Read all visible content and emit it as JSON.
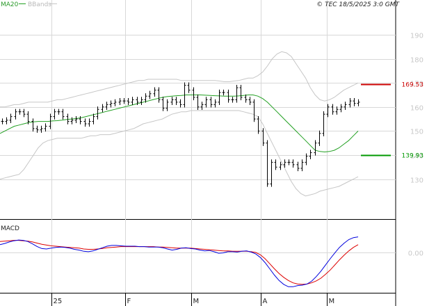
{
  "legend": {
    "ma_label": "MA20",
    "bands_label": "BBands"
  },
  "copyright": "© TEC 18/5/2025 3:0 GMT",
  "colors": {
    "ma": "#22a022",
    "bands": "#c6c6c6",
    "price": "#000000",
    "macd": "#0000dd",
    "signal": "#dd0000",
    "resistance": "#cc0000",
    "support": "#009900",
    "grid": "#d8d8d8"
  },
  "chart_data": [
    {
      "type": "line",
      "title": "",
      "ylim": [
        116,
        201
      ],
      "y_ticks": [
        130,
        140,
        150,
        160,
        170,
        180,
        190
      ],
      "y_tick_labels": [
        "130",
        "140",
        "150",
        "160",
        "170",
        "180",
        "190"
      ],
      "x_tick_labels": [
        "25",
        "F",
        "M",
        "A",
        "M"
      ],
      "levels": [
        {
          "name": "resistance",
          "value": 169.53,
          "label": "169.53"
        },
        {
          "name": "support",
          "value": 139.93,
          "label": "139.93"
        }
      ],
      "series": [
        {
          "name": "MA20",
          "values": [
            149,
            150,
            151,
            152,
            152.5,
            153,
            153.5,
            153.8,
            154,
            154,
            154,
            154.2,
            154.3,
            154.5,
            154.8,
            155,
            155.2,
            155.5,
            156,
            156.5,
            157,
            157.5,
            158,
            158.5,
            159,
            159.5,
            160,
            160.5,
            161,
            161.5,
            162,
            162.5,
            163,
            163.5,
            164,
            164.3,
            164.5,
            164.7,
            164.8,
            165,
            165,
            165,
            165,
            164.9,
            164.8,
            164.7,
            164.6,
            164.5,
            164.5,
            164.5,
            164.6,
            164.8,
            165,
            165,
            164.5,
            163.5,
            162,
            160,
            158,
            156,
            154,
            152,
            150,
            148,
            146,
            144,
            142,
            141.5,
            141.3,
            141.5,
            142,
            143,
            144.5,
            146,
            148,
            150
          ]
        },
        {
          "name": "BBands upper",
          "values": [
            160,
            160,
            160.5,
            161,
            161,
            161.5,
            162,
            162,
            162,
            162,
            162,
            162.5,
            163,
            163,
            163.5,
            164,
            164.5,
            165,
            165.5,
            166,
            166.5,
            167,
            167.5,
            168,
            168.5,
            169,
            169.5,
            170,
            170.5,
            171,
            171,
            171.5,
            171.5,
            171.5,
            171.5,
            171.5,
            171.5,
            171.5,
            171,
            171,
            171,
            171,
            171,
            171,
            171,
            171,
            170.8,
            170.5,
            170.5,
            170.8,
            171,
            171.5,
            172,
            172,
            173,
            174.5,
            177,
            180,
            182,
            183,
            182.5,
            181,
            178,
            175,
            172,
            168,
            165,
            163,
            162.5,
            163,
            164,
            165.5,
            167,
            168,
            169,
            170
          ]
        },
        {
          "name": "BBands lower",
          "values": [
            130,
            130.5,
            131,
            131.5,
            132,
            134,
            137,
            140,
            143,
            145,
            146,
            146.5,
            147,
            147,
            147,
            147,
            147,
            147,
            147.5,
            148,
            148,
            148.5,
            148.5,
            148.5,
            149,
            149.5,
            150,
            150.5,
            151,
            152,
            153,
            153.5,
            154,
            154.5,
            155,
            156,
            157,
            157.5,
            158,
            158,
            158.5,
            158.5,
            158.5,
            158.5,
            158.5,
            158.5,
            158.5,
            158.5,
            158.5,
            158.5,
            158.5,
            158,
            157.5,
            157,
            156,
            153,
            149,
            145,
            141,
            137,
            133,
            129,
            126,
            124,
            123,
            123.5,
            124,
            125,
            125.5,
            126,
            126.5,
            127,
            128,
            129,
            130,
            131
          ]
        },
        {
          "name": "Price",
          "values": [
            154,
            154.5,
            156,
            158,
            158,
            157,
            154,
            151,
            150.5,
            151,
            152,
            156,
            158,
            158,
            156,
            154,
            154.5,
            155,
            154,
            153,
            154,
            156,
            159,
            160,
            161,
            161.5,
            162,
            162.5,
            162.5,
            162,
            163,
            162,
            163,
            164.5,
            165.5,
            167,
            163,
            159.5,
            162,
            163,
            162,
            161,
            169,
            167,
            164,
            160,
            161,
            163,
            161,
            162,
            166,
            166,
            163,
            163,
            168,
            164,
            163,
            162,
            155,
            150,
            145,
            128,
            137,
            135,
            136,
            137,
            137,
            136,
            134.5,
            137,
            139.5,
            141,
            145,
            149,
            157,
            160,
            158,
            159,
            160,
            161,
            162.5,
            161.5,
            162
          ]
        }
      ]
    },
    {
      "type": "line",
      "title": "",
      "y_ticks": [
        0
      ],
      "y_tick_labels": [
        "0.00"
      ],
      "series": [
        {
          "name": "MACD",
          "values": [
            2,
            2.3,
            2.7,
            3,
            3.2,
            3.1,
            2.8,
            2.2,
            1.5,
            1,
            0.9,
            1.1,
            1.3,
            1.4,
            1.3,
            1.1,
            0.8,
            0.6,
            0.3,
            0.2,
            0.4,
            0.8,
            1.2,
            1.6,
            1.8,
            1.8,
            1.7,
            1.6,
            1.6,
            1.6,
            1.5,
            1.5,
            1.4,
            1.4,
            1.4,
            1.2,
            0.9,
            0.6,
            0.8,
            1.1,
            1.2,
            1,
            0.9,
            0.6,
            0.4,
            0.5,
            0.2,
            -0.2,
            -0.1,
            0.2,
            0.2,
            0.1,
            0.3,
            0.4,
            0.1,
            -0.4,
            -1.3,
            -2.6,
            -4.2,
            -5.8,
            -7.2,
            -8.2,
            -8.8,
            -8.8,
            -8.5,
            -8.4,
            -8.1,
            -7.4,
            -6.2,
            -4.8,
            -3.2,
            -1.6,
            -0.1,
            1.3,
            2.4,
            3.3,
            3.8,
            4
          ]
        },
        {
          "name": "Signal",
          "values": [
            2.8,
            2.9,
            3,
            3.1,
            3.1,
            3,
            2.9,
            2.7,
            2.4,
            2.1,
            1.9,
            1.7,
            1.6,
            1.5,
            1.4,
            1.3,
            1.2,
            1.1,
            0.9,
            0.8,
            0.8,
            0.9,
            1,
            1.2,
            1.3,
            1.4,
            1.5,
            1.5,
            1.5,
            1.5,
            1.5,
            1.5,
            1.5,
            1.5,
            1.4,
            1.4,
            1.3,
            1.2,
            1.1,
            1.1,
            1.1,
            1.1,
            1,
            0.9,
            0.8,
            0.7,
            0.6,
            0.5,
            0.4,
            0.4,
            0.3,
            0.3,
            0.3,
            0.3,
            0.2,
            0,
            -0.6,
            -1.6,
            -2.9,
            -4.2,
            -5.4,
            -6.4,
            -7.2,
            -7.8,
            -8.1,
            -8.2,
            -8.1,
            -7.8,
            -7.3,
            -6.6,
            -5.6,
            -4.5,
            -3.2,
            -1.9,
            -0.7,
            0.4,
            1.3,
            2
          ]
        }
      ]
    }
  ]
}
